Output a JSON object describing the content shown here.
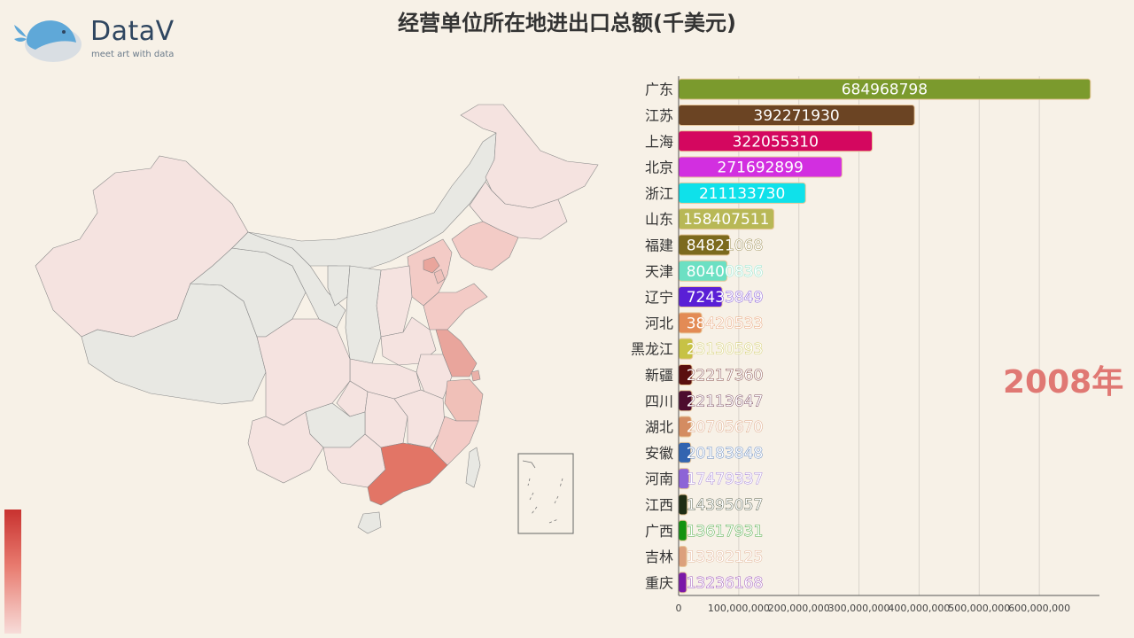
{
  "title": "经营单位所在地进出口总额(千美元)",
  "logo": {
    "name": "DataV",
    "tagline": "meet art with data"
  },
  "year_label": "2008年",
  "colors": {
    "map_high": "#e27566",
    "map_mid": "#f3cbc6",
    "map_low": "#f5e3e0",
    "map_none": "#e8e8e3",
    "background": "#f7f1e7"
  },
  "chart_data": {
    "type": "bar",
    "orientation": "horizontal",
    "title": "经营单位所在地进出口总额(千美元)",
    "categories": [
      "广东",
      "江苏",
      "上海",
      "北京",
      "浙江",
      "山东",
      "福建",
      "天津",
      "辽宁",
      "河北",
      "黑龙江",
      "新疆",
      "四川",
      "湖北",
      "安徽",
      "河南",
      "江西",
      "广西",
      "吉林",
      "重庆"
    ],
    "visible_labels": [
      "广东",
      "江苏",
      "上海",
      "北京",
      "浙江",
      "山东",
      "福建",
      "天津",
      "辽宁",
      "河北",
      "黑龙江",
      "新疆",
      "四川",
      "湖北",
      "安徽",
      "河南",
      "江西",
      "广西",
      "吉林",
      "重庆"
    ],
    "values": [
      684968798,
      392271930,
      322055310,
      271692899,
      211133730,
      158407511,
      84821068,
      80400836,
      72433849,
      38420533,
      23130593,
      22217360,
      22113647,
      20705670,
      20183848,
      17479337,
      14395057,
      13617931,
      13382125,
      13236168
    ],
    "bar_colors": [
      "#7b9a2d",
      "#6b4423",
      "#d4075f",
      "#d22fe0",
      "#0fe1ea",
      "#b8b856",
      "#7c6a1e",
      "#6ce0c3",
      "#5a1fd6",
      "#e38b55",
      "#c7c245",
      "#5a0f0f",
      "#4d0d2e",
      "#d48c61",
      "#3264b0",
      "#8d63d6",
      "#1e2d14",
      "#13930f",
      "#dca07c",
      "#7b18a8"
    ],
    "xlim": [
      0,
      700000000
    ],
    "xticks": [
      0,
      100000000,
      200000000,
      300000000,
      400000000,
      500000000,
      600000000
    ],
    "xtick_labels": [
      "0",
      "100,000,000",
      "200,000,000",
      "300,000,000",
      "400,000,000",
      "500,000,000",
      "600,000,000"
    ],
    "grid": true
  }
}
